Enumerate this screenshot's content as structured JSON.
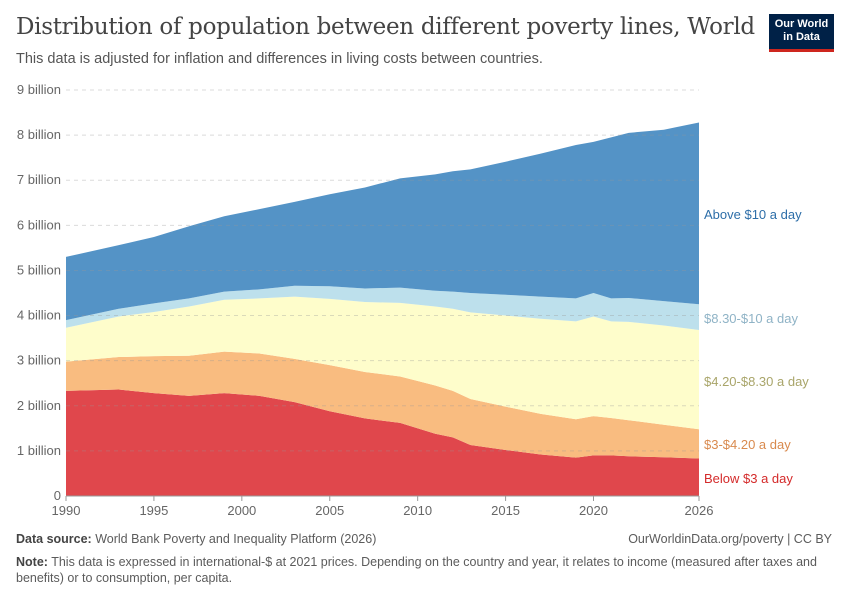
{
  "title": "Distribution of population between different poverty lines, World",
  "subtitle": "This data is adjusted for inflation and differences in living costs between countries.",
  "logo": {
    "line1": "Our World",
    "line2": "in Data",
    "bg": "#002147",
    "accent": "#ce261e"
  },
  "footer": {
    "source_label": "Data source:",
    "source": "World Bank Poverty and Inequality Platform (2026)",
    "url": "OurWorldinData.org/poverty | CC BY",
    "note_label": "Note:",
    "note": "This data is expressed in international-$ at 2021 prices. Depending on the country and year, it relates to income (measured after taxes and benefits) or to consumption, per capita."
  },
  "chart_data": {
    "type": "area",
    "stacked": true,
    "xlim": [
      1990,
      2026
    ],
    "ylim": [
      0,
      9000000000
    ],
    "yticks": [
      {
        "v": 0,
        "label": "0"
      },
      {
        "v": 1000000000.0,
        "label": "1 billion"
      },
      {
        "v": 2000000000.0,
        "label": "2 billion"
      },
      {
        "v": 3000000000.0,
        "label": "3 billion"
      },
      {
        "v": 4000000000.0,
        "label": "4 billion"
      },
      {
        "v": 5000000000.0,
        "label": "5 billion"
      },
      {
        "v": 6000000000.0,
        "label": "6 billion"
      },
      {
        "v": 7000000000.0,
        "label": "7 billion"
      },
      {
        "v": 8000000000.0,
        "label": "8 billion"
      },
      {
        "v": 9000000000.0,
        "label": "9 billion"
      }
    ],
    "xticks": [
      "1990",
      "1995",
      "2000",
      "2005",
      "2010",
      "2015",
      "2020",
      "2026"
    ],
    "grid": true,
    "legend": "right-inline",
    "x": [
      1990,
      1993,
      1995,
      1997,
      1999,
      2001,
      2003,
      2005,
      2007,
      2009,
      2011,
      2012,
      2013,
      2015,
      2017,
      2019,
      2020,
      2021,
      2022,
      2024,
      2026
    ],
    "series": [
      {
        "name": "Below $3 a day",
        "color": "#e0474c",
        "label_color": "#d42a2a",
        "values": [
          2.33,
          2.36,
          2.28,
          2.22,
          2.28,
          2.22,
          2.08,
          1.88,
          1.72,
          1.62,
          1.38,
          1.3,
          1.13,
          1.02,
          0.92,
          0.85,
          0.9,
          0.9,
          0.88,
          0.86,
          0.83
        ]
      },
      {
        "name": "$3-$4.20 a day",
        "color": "#f9bc80",
        "label_color": "#d98a4e",
        "values": [
          0.65,
          0.72,
          0.82,
          0.89,
          0.92,
          0.94,
          0.96,
          1.02,
          1.03,
          1.03,
          1.07,
          1.03,
          1.02,
          0.96,
          0.9,
          0.85,
          0.87,
          0.83,
          0.8,
          0.72,
          0.65
        ]
      },
      {
        "name": "$4.20-$8.30 a day",
        "color": "#fefdcb",
        "label_color": "#a9a56a",
        "values": [
          0.75,
          0.9,
          0.98,
          1.09,
          1.15,
          1.22,
          1.38,
          1.47,
          1.55,
          1.63,
          1.75,
          1.82,
          1.92,
          2.02,
          2.11,
          2.17,
          2.21,
          2.14,
          2.18,
          2.2,
          2.2
        ]
      },
      {
        "name": "$8.30-$10 a day",
        "color": "#bde0ec",
        "label_color": "#8fb3c6",
        "values": [
          0.17,
          0.17,
          0.19,
          0.18,
          0.18,
          0.2,
          0.24,
          0.28,
          0.3,
          0.34,
          0.35,
          0.38,
          0.43,
          0.46,
          0.49,
          0.51,
          0.52,
          0.51,
          0.53,
          0.54,
          0.57
        ]
      },
      {
        "name": "Above $10 a day",
        "color": "#5493c6",
        "label_color": "#2d6ea8",
        "values": [
          1.4,
          1.41,
          1.47,
          1.6,
          1.67,
          1.78,
          1.86,
          2.04,
          2.24,
          2.42,
          2.58,
          2.67,
          2.74,
          2.95,
          3.17,
          3.4,
          3.35,
          3.57,
          3.66,
          3.8,
          4.03
        ]
      }
    ],
    "value_unit": "billion"
  }
}
